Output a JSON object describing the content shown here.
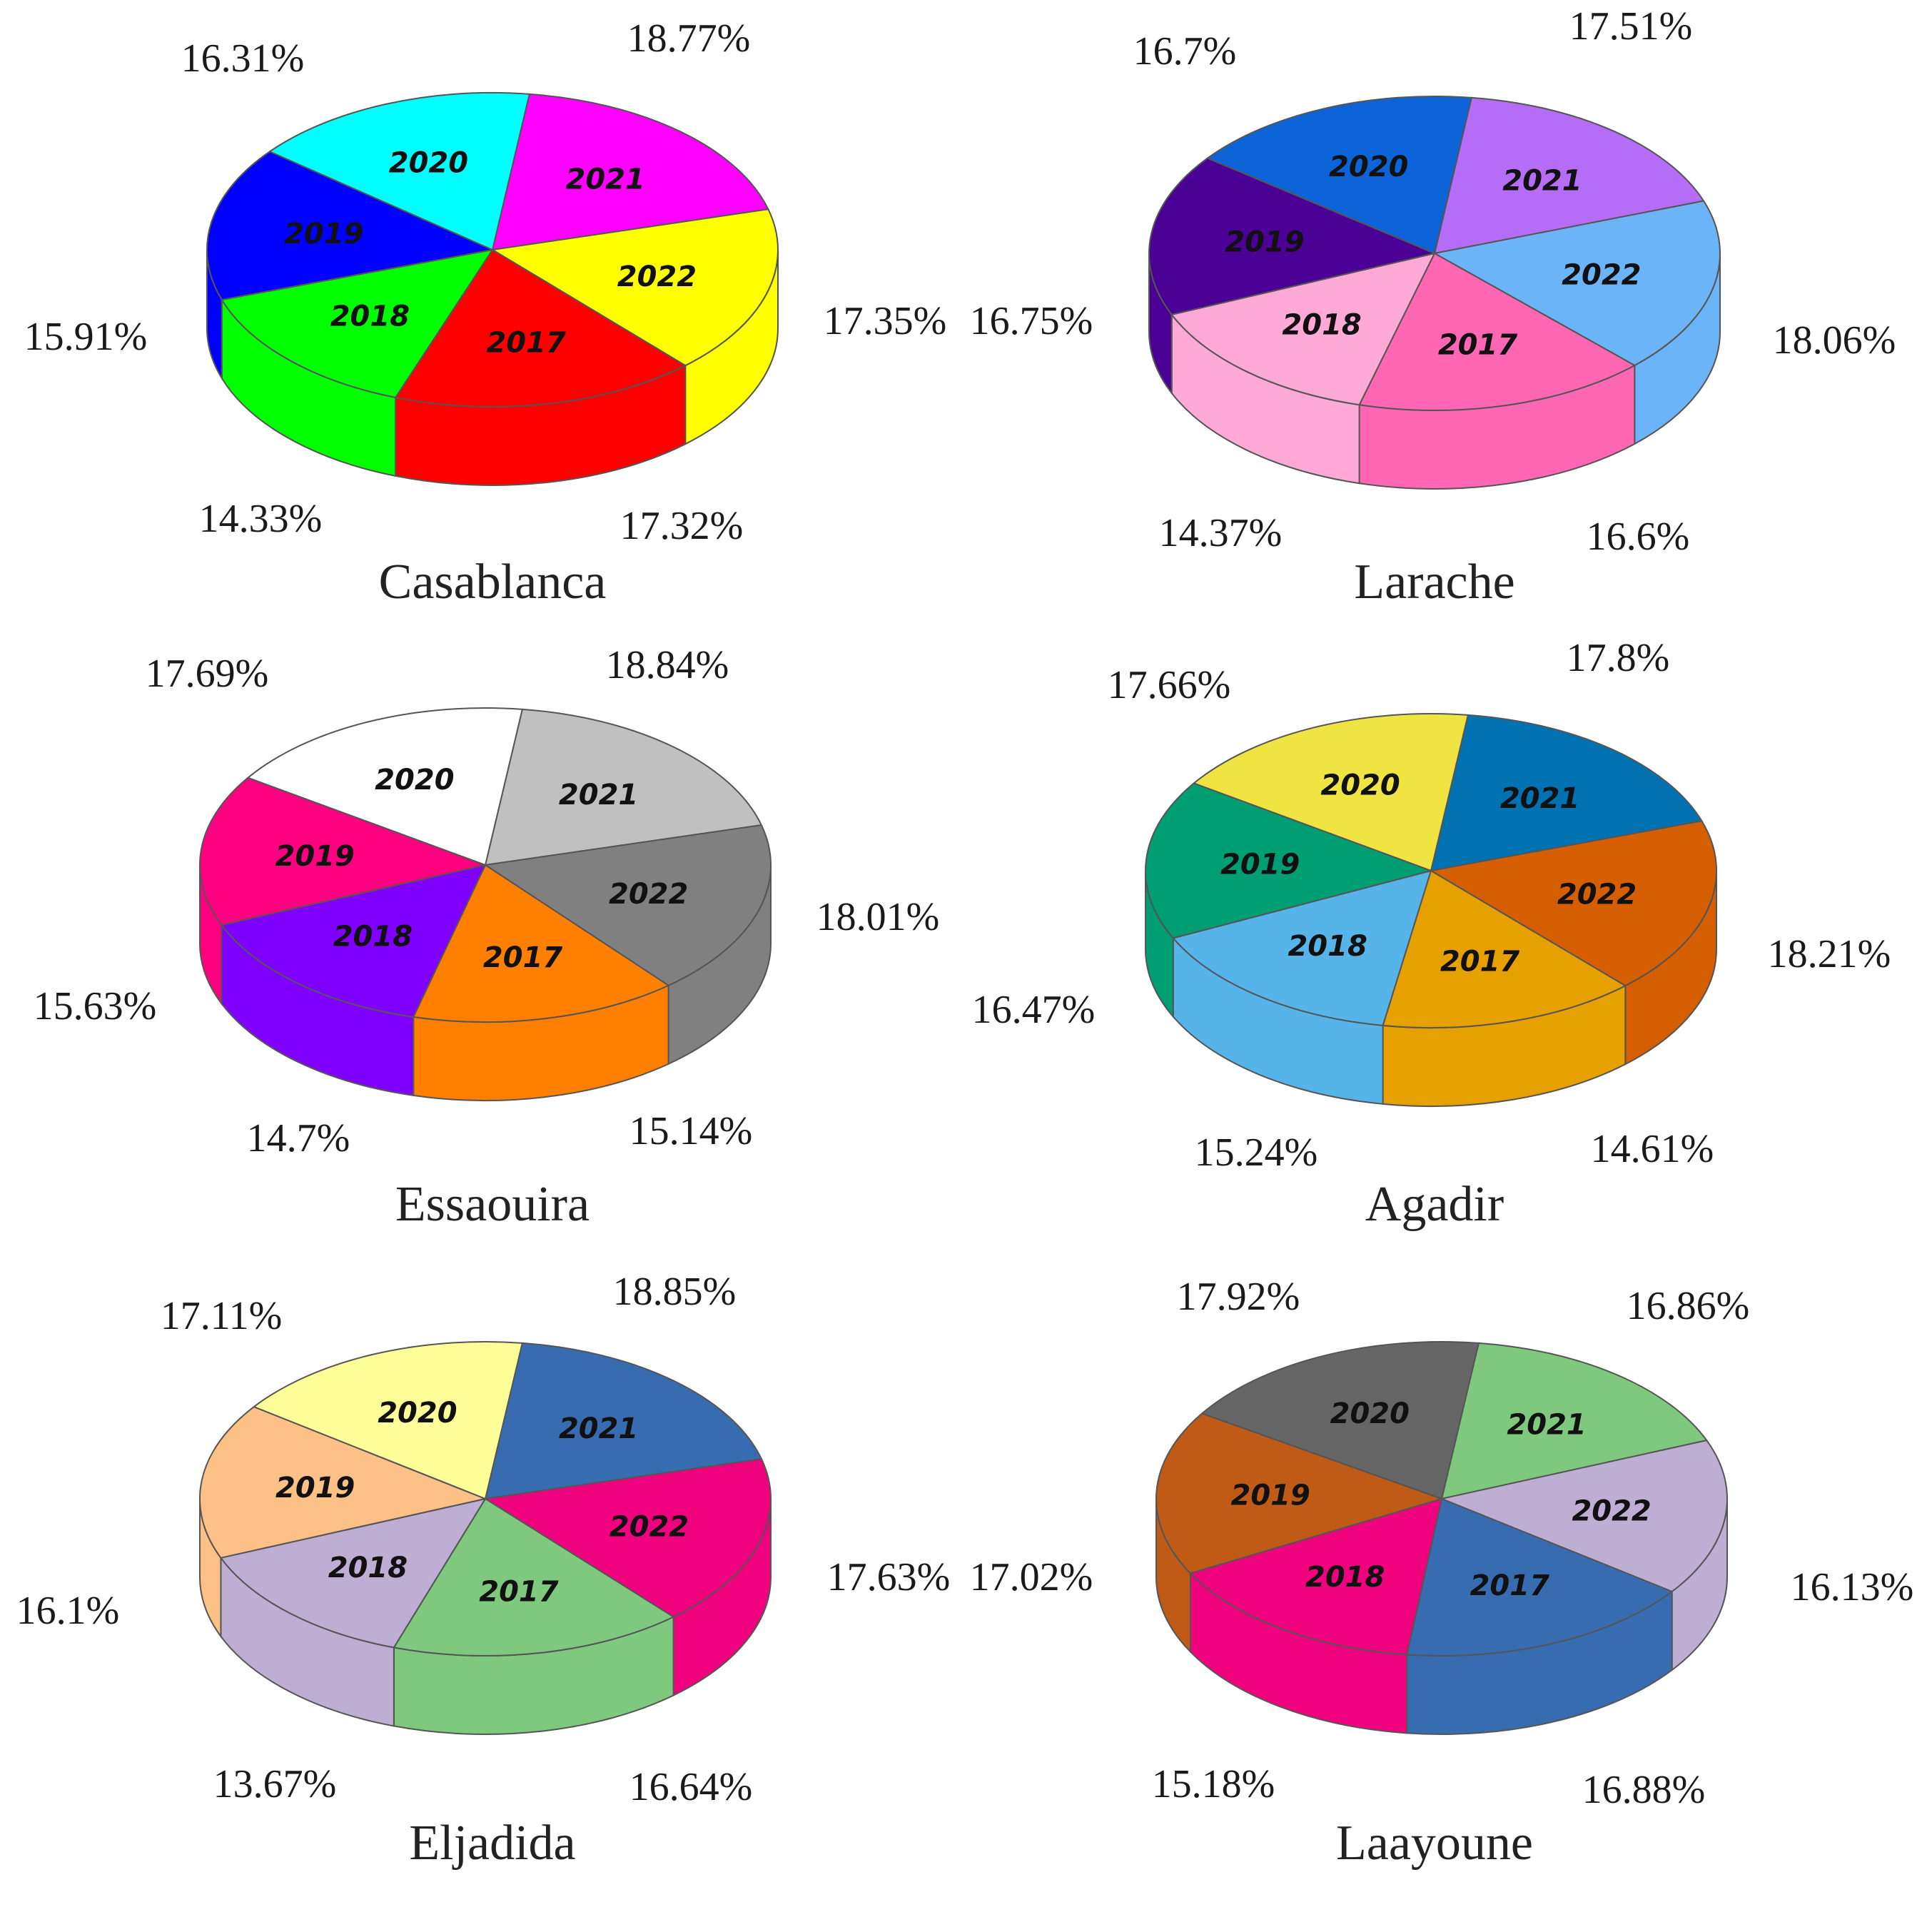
{
  "chart_data": [
    {
      "type": "pie",
      "title": "Casablanca",
      "slices": [
        {
          "label": "2017",
          "value": 17.32,
          "value_text": "17.32%",
          "color": "#ff0000"
        },
        {
          "label": "2018",
          "value": 14.33,
          "value_text": "14.33%",
          "color": "#00ff00"
        },
        {
          "label": "2019",
          "value": 15.91,
          "value_text": "15.91%",
          "color": "#0000ff"
        },
        {
          "label": "2020",
          "value": 16.31,
          "value_text": "16.31%",
          "color": "#00ffff"
        },
        {
          "label": "2021",
          "value": 18.77,
          "value_text": "18.77%",
          "color": "#ff00ff"
        },
        {
          "label": "2022",
          "value": 17.35,
          "value_text": "17.35%",
          "color": "#ffff00"
        }
      ]
    },
    {
      "type": "pie",
      "title": "Larache",
      "slices": [
        {
          "label": "2017",
          "value": 16.6,
          "value_text": "16.6%",
          "color": "#ff66b3"
        },
        {
          "label": "2018",
          "value": 14.37,
          "value_text": "14.37%",
          "color": "#ffaad6"
        },
        {
          "label": "2019",
          "value": 16.75,
          "value_text": "16.75%",
          "color": "#4b0096"
        },
        {
          "label": "2020",
          "value": 16.7,
          "value_text": "16.7%",
          "color": "#0d63d8"
        },
        {
          "label": "2021",
          "value": 17.51,
          "value_text": "17.51%",
          "color": "#b56cf7"
        },
        {
          "label": "2022",
          "value": 18.06,
          "value_text": "18.06%",
          "color": "#6cb4f8"
        }
      ]
    },
    {
      "type": "pie",
      "title": "Essaouira",
      "slices": [
        {
          "label": "2017",
          "value": 15.14,
          "value_text": "15.14%",
          "color": "#ff8000"
        },
        {
          "label": "2018",
          "value": 14.7,
          "value_text": "14.7%",
          "color": "#8000ff"
        },
        {
          "label": "2019",
          "value": 15.63,
          "value_text": "15.63%",
          "color": "#ff0080"
        },
        {
          "label": "2020",
          "value": 17.69,
          "value_text": "17.69%",
          "color": "#ffffff"
        },
        {
          "label": "2021",
          "value": 18.84,
          "value_text": "18.84%",
          "color": "#c0c0c0"
        },
        {
          "label": "2022",
          "value": 18.01,
          "value_text": "18.01%",
          "color": "#808080"
        }
      ]
    },
    {
      "type": "pie",
      "title": "Agadir",
      "slices": [
        {
          "label": "2017",
          "value": 14.61,
          "value_text": "14.61%",
          "color": "#e6a000"
        },
        {
          "label": "2018",
          "value": 15.24,
          "value_text": "15.24%",
          "color": "#56b4e9"
        },
        {
          "label": "2019",
          "value": 16.47,
          "value_text": "16.47%",
          "color": "#009e73"
        },
        {
          "label": "2020",
          "value": 17.66,
          "value_text": "17.66%",
          "color": "#f0e442"
        },
        {
          "label": "2021",
          "value": 17.8,
          "value_text": "17.8%",
          "color": "#0072b2"
        },
        {
          "label": "2022",
          "value": 18.21,
          "value_text": "18.21%",
          "color": "#d55e00"
        }
      ]
    },
    {
      "type": "pie",
      "title": "Eljadida",
      "slices": [
        {
          "label": "2017",
          "value": 16.64,
          "value_text": "16.64%",
          "color": "#7fc97f"
        },
        {
          "label": "2018",
          "value": 13.67,
          "value_text": "13.67%",
          "color": "#beaed4"
        },
        {
          "label": "2019",
          "value": 16.1,
          "value_text": "16.1%",
          "color": "#fdc086"
        },
        {
          "label": "2020",
          "value": 17.11,
          "value_text": "17.11%",
          "color": "#ffff99"
        },
        {
          "label": "2021",
          "value": 18.85,
          "value_text": "18.85%",
          "color": "#386cb0"
        },
        {
          "label": "2022",
          "value": 17.63,
          "value_text": "17.63%",
          "color": "#f0027f"
        }
      ]
    },
    {
      "type": "pie",
      "title": "Laayoune",
      "slices": [
        {
          "label": "2017",
          "value": 16.88,
          "value_text": "16.88%",
          "color": "#386cb0"
        },
        {
          "label": "2018",
          "value": 15.18,
          "value_text": "15.18%",
          "color": "#f0027f"
        },
        {
          "label": "2019",
          "value": 17.02,
          "value_text": "17.02%",
          "color": "#bf5b17"
        },
        {
          "label": "2020",
          "value": 17.92,
          "value_text": "17.92%",
          "color": "#666666"
        },
        {
          "label": "2021",
          "value": 16.86,
          "value_text": "16.86%",
          "color": "#7fc97f"
        },
        {
          "label": "2022",
          "value": 16.13,
          "value_text": "16.13%",
          "color": "#beaed4"
        }
      ]
    }
  ]
}
